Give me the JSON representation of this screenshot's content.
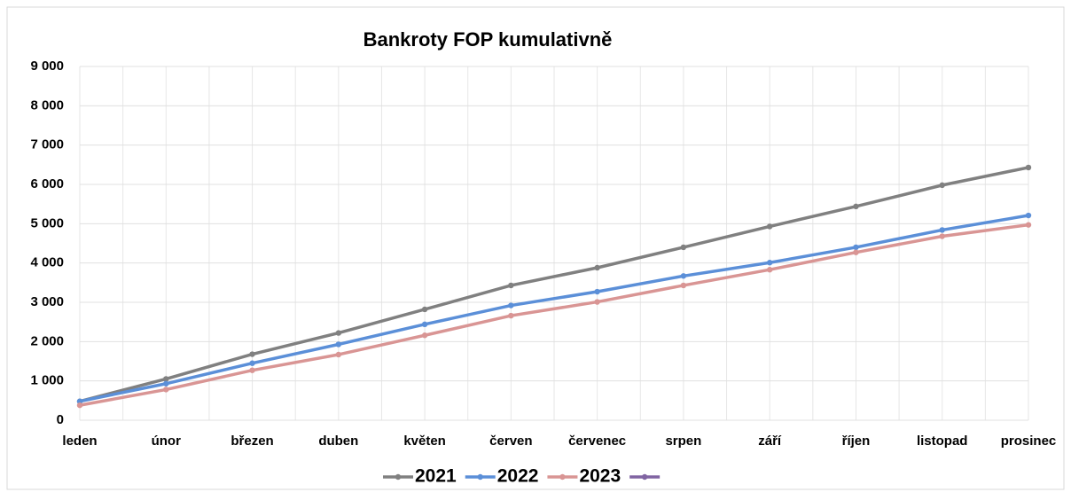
{
  "chart_data": {
    "type": "line",
    "title": "Bankroty FOP kumulativně",
    "categories": [
      "leden",
      "únor",
      "březen",
      "duben",
      "květen",
      "červen",
      "červenec",
      "srpen",
      "září",
      "říjen",
      "listopad",
      "prosinec"
    ],
    "series": [
      {
        "name": "2021",
        "color": "#808080",
        "values": [
          480,
          1050,
          1680,
          2220,
          2820,
          3430,
          3880,
          4400,
          4930,
          5440,
          5980,
          6430
        ]
      },
      {
        "name": "2022",
        "color": "#5b8fd8",
        "values": [
          480,
          930,
          1450,
          1930,
          2440,
          2920,
          3270,
          3670,
          4010,
          4400,
          4840,
          5210
        ]
      },
      {
        "name": "2023",
        "color": "#d99594",
        "values": [
          380,
          780,
          1270,
          1670,
          2160,
          2660,
          3010,
          3430,
          3830,
          4270,
          4680,
          4970
        ]
      },
      {
        "color": "#8064a2",
        "values": [
          null,
          null,
          null,
          null,
          null,
          null,
          null,
          null,
          null,
          null,
          null,
          null
        ]
      }
    ],
    "ylim": [
      0,
      9000
    ],
    "yticks": [
      0,
      {
        "value": 1000,
        "label": "1 000"
      },
      {
        "value": 2000,
        "label": "2 000"
      },
      {
        "value": 3000,
        "label": "3 000"
      },
      {
        "value": 4000,
        "label": "4 000"
      },
      {
        "value": 5000,
        "label": "5 000"
      },
      {
        "value": 6000,
        "label": "6 000"
      },
      {
        "value": 7000,
        "label": "7 000"
      },
      {
        "value": 8000,
        "label": "8 000"
      },
      {
        "value": 9000,
        "label": "9 000"
      }
    ],
    "grid": true,
    "legend": "bottom"
  }
}
